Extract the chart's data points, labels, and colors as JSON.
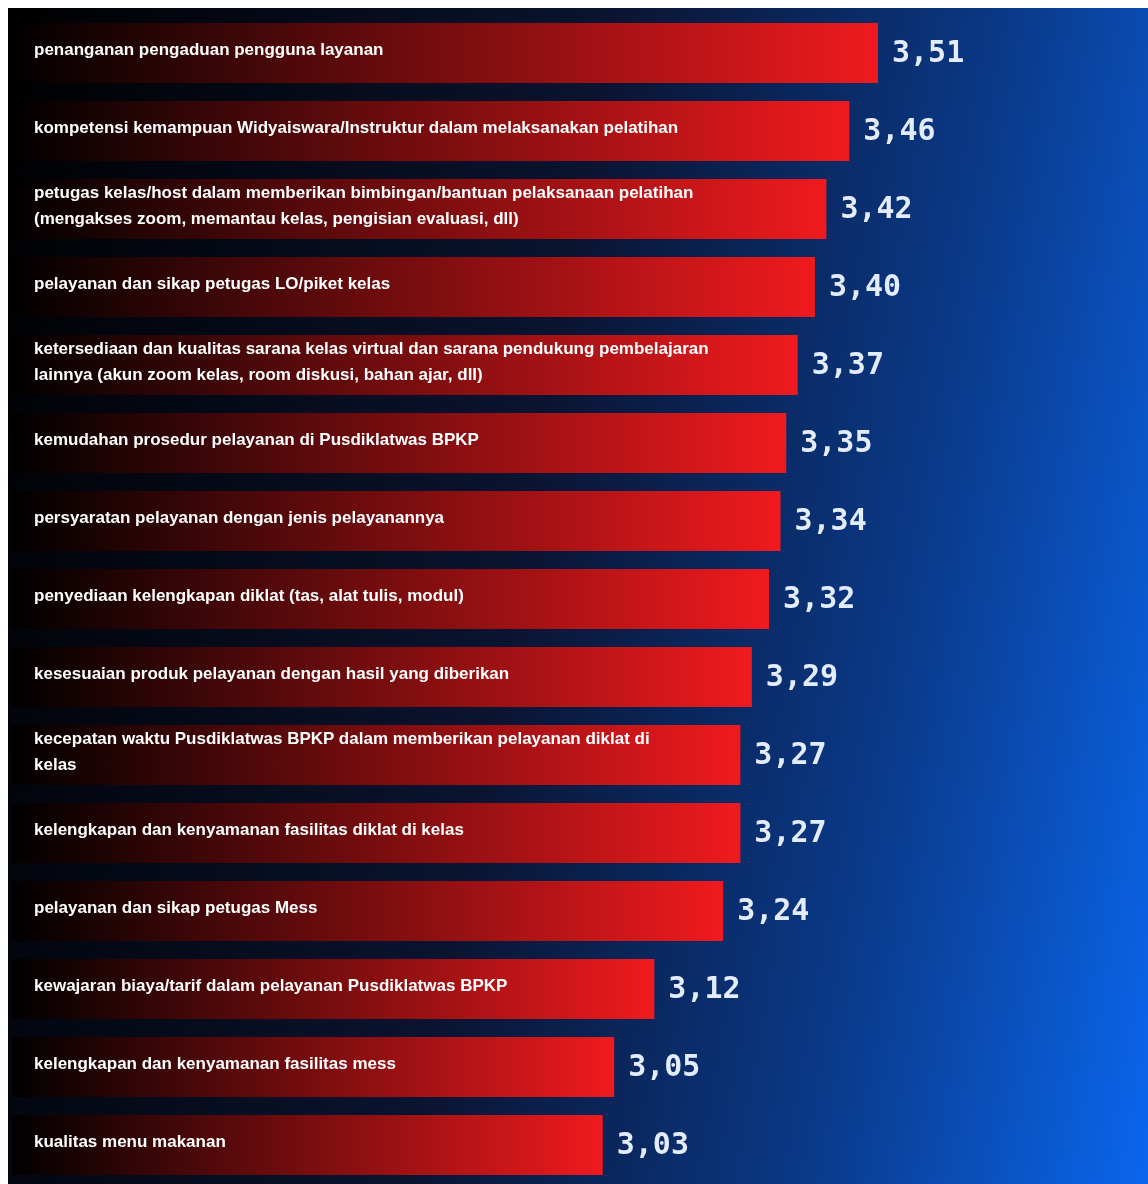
{
  "chart_data": {
    "type": "bar",
    "orientation": "horizontal",
    "categories": [
      "penanganan pengaduan pengguna layanan",
      "kompetensi kemampuan Widyaiswara/Instruktur dalam melaksanakan pelatihan",
      "petugas kelas/host dalam memberikan bimbingan/bantuan pelaksanaan pelatihan (mengakses zoom, memantau kelas, pengisian evaluasi, dll)",
      "pelayanan dan sikap petugas LO/piket kelas",
      "ketersediaan dan kualitas sarana kelas virtual dan sarana pendukung pembelajaran lainnya (akun zoom kelas, room diskusi, bahan ajar, dll)",
      "kemudahan prosedur pelayanan di Pusdiklatwas BPKP",
      "persyaratan pelayanan dengan jenis pelayanannya",
      "penyediaan kelengkapan diklat (tas, alat tulis, modul)",
      "kesesuaian produk pelayanan dengan hasil yang diberikan",
      "kecepatan waktu Pusdiklatwas BPKP dalam memberikan pelayanan diklat di kelas",
      "kelengkapan dan kenyamanan fasilitas diklat di kelas",
      "pelayanan dan sikap petugas Mess",
      "kewajaran biaya/tarif dalam pelayanan Pusdiklatwas BPKP",
      "kelengkapan dan kenyamanan fasilitas mess",
      "kualitas menu makanan"
    ],
    "values": [
      3.51,
      3.46,
      3.42,
      3.4,
      3.37,
      3.35,
      3.34,
      3.32,
      3.29,
      3.27,
      3.27,
      3.24,
      3.12,
      3.05,
      3.03
    ],
    "value_labels": [
      "3,51",
      "3,46",
      "3,42",
      "3,40",
      "3,37",
      "3,35",
      "3,34",
      "3,32",
      "3,29",
      "3,27",
      "3,27",
      "3,24",
      "3,12",
      "3,05",
      "3,03"
    ],
    "color": "#f01a1e",
    "xlim": [
      2,
      3.51
    ],
    "tick_labels": false,
    "grid": false,
    "legend": false
  }
}
